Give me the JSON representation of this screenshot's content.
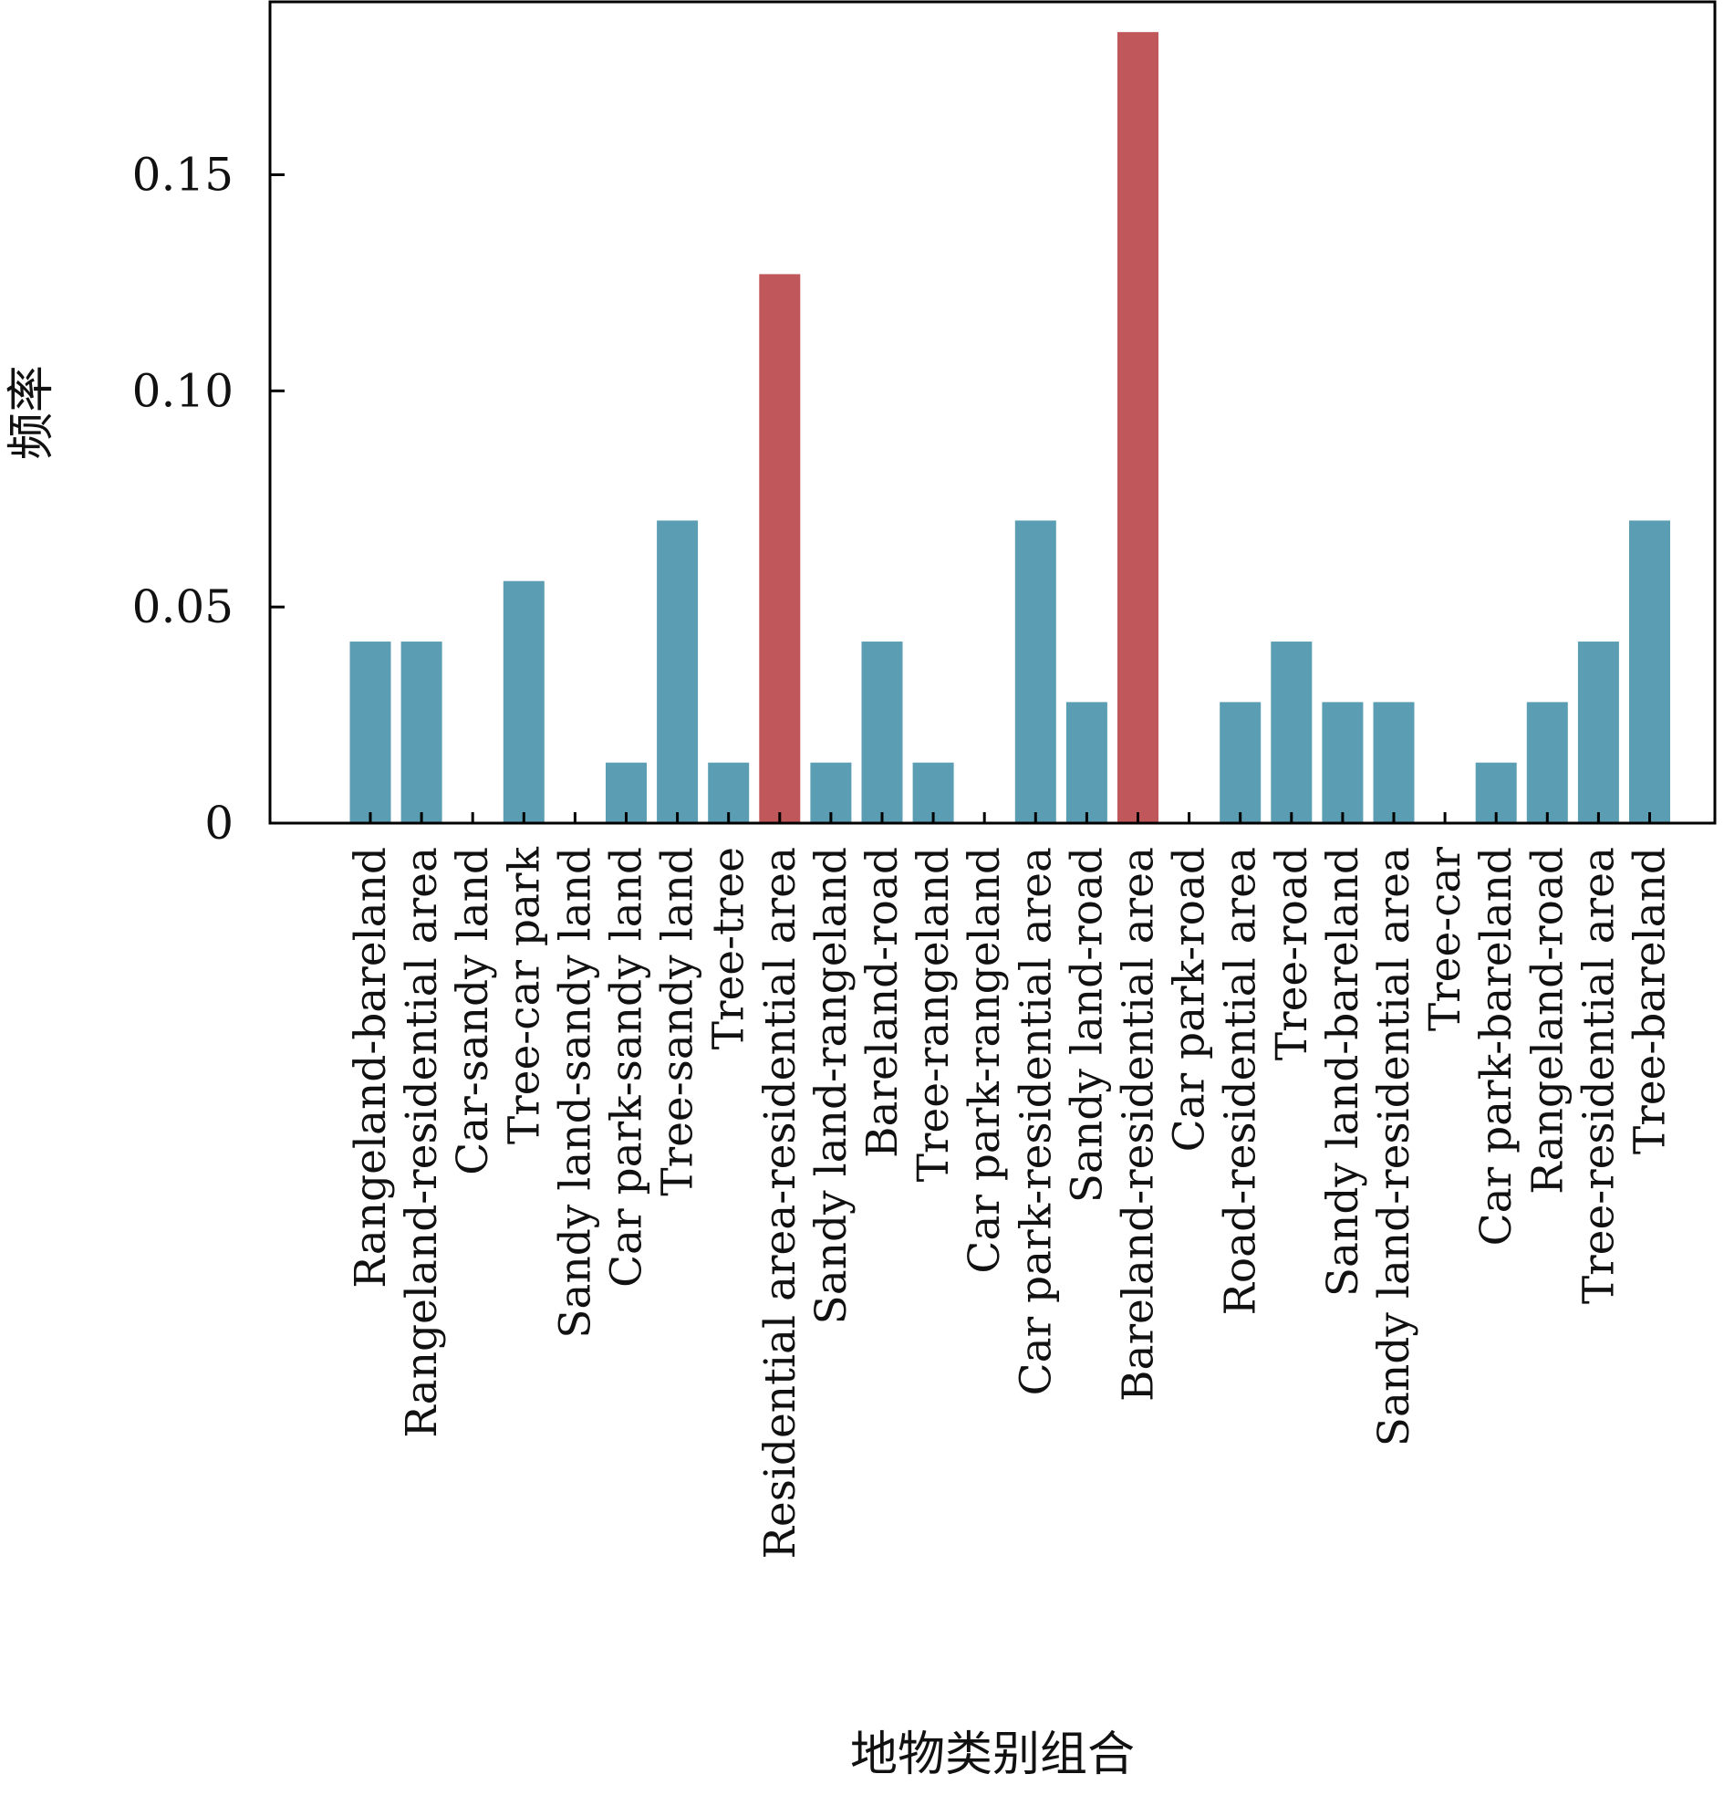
{
  "chart_data": {
    "type": "bar",
    "xlabel": "地物类别组合",
    "ylabel": "频率",
    "ylim": [
      0,
      0.19
    ],
    "yticks": [
      0,
      0.05,
      0.1,
      0.15
    ],
    "ytick_labels": [
      "0",
      "0.05",
      "0.10",
      "0.15"
    ],
    "grid": false,
    "colors": {
      "default": "#5b9eb4",
      "highlight": "#c0575a"
    },
    "categories": [
      "Rangeland-bareland",
      "Rangeland-residential area",
      "Car-sandy land",
      "Tree-car park",
      "Sandy land-sandy land",
      "Car park-sandy land",
      "Tree-sandy land",
      "Tree-tree",
      "Residential area-residential area",
      "Sandy land-rangeland",
      "Bareland-road",
      "Tree-rangeland",
      "Car park-rangeland",
      "Car park-residential area",
      "Sandy land-road",
      "Bareland-residential area",
      "Car park-road",
      "Road-residential area",
      "Tree-road",
      "Sandy land-bareland",
      "Sandy land-residential area",
      "Tree-car",
      "Car park-bareland",
      "Rangeland-road",
      "Tree-residential area",
      "Tree-bareland"
    ],
    "values": [
      0.042,
      0.042,
      0,
      0.056,
      0,
      0.014,
      0.07,
      0.014,
      0.127,
      0.014,
      0.042,
      0.014,
      0,
      0.07,
      0.028,
      0.183,
      0,
      0.028,
      0.042,
      0.028,
      0.028,
      0,
      0.014,
      0.028,
      0.042,
      0.07
    ],
    "highlight": [
      false,
      false,
      false,
      false,
      false,
      false,
      false,
      false,
      true,
      false,
      false,
      false,
      false,
      false,
      false,
      true,
      false,
      false,
      false,
      false,
      false,
      false,
      false,
      false,
      false,
      false
    ]
  }
}
